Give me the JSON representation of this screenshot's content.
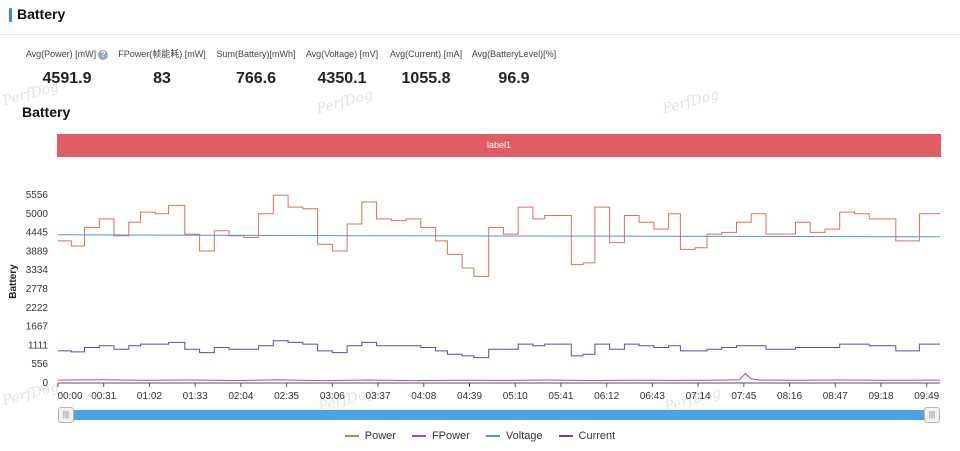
{
  "header": {
    "title": "Battery"
  },
  "stats": [
    {
      "label": "Avg(Power) [mW]",
      "value": "4591.9",
      "help": "?"
    },
    {
      "label": "FPower(帧能耗) [mW]",
      "value": "83"
    },
    {
      "label": "Sum(Battery)[mWh]",
      "value": "766.6"
    },
    {
      "label": "Avg(Voltage) [mV]",
      "value": "4350.1"
    },
    {
      "label": "Avg(Current) [mA]",
      "value": "1055.8"
    },
    {
      "label": "Avg(BatteryLevel)[%]",
      "value": "96.9"
    }
  ],
  "watermark": "PerfDog",
  "chart_title": "Battery",
  "label_band": "label1",
  "chart_data": {
    "type": "line",
    "ylabel": "Battery",
    "yticks": [
      0,
      556,
      1111,
      1667,
      2222,
      2778,
      3334,
      3889,
      4445,
      5000,
      5556
    ],
    "ylim": [
      0,
      6000
    ],
    "xlim": [
      0,
      598
    ],
    "xtick_labels": [
      "00:00",
      "00:31",
      "01:02",
      "01:33",
      "02:04",
      "02:35",
      "03:06",
      "03:37",
      "04:08",
      "04:39",
      "05:10",
      "05:41",
      "06:12",
      "06:43",
      "07:14",
      "07:45",
      "08:16",
      "08:47",
      "09:18",
      "09:49"
    ],
    "xtick_seconds": [
      0,
      31,
      62,
      93,
      124,
      155,
      186,
      217,
      248,
      279,
      310,
      341,
      372,
      403,
      434,
      465,
      496,
      527,
      558,
      589
    ],
    "series": [
      {
        "name": "Power",
        "color": "#e0714f",
        "points": [
          [
            0,
            4200
          ],
          [
            9,
            4050
          ],
          [
            18,
            4600
          ],
          [
            28,
            4850
          ],
          [
            38,
            4350
          ],
          [
            48,
            4750
          ],
          [
            56,
            5050
          ],
          [
            66,
            5000
          ],
          [
            75,
            5250
          ],
          [
            86,
            4400
          ],
          [
            96,
            3900
          ],
          [
            106,
            4500
          ],
          [
            116,
            4350
          ],
          [
            126,
            4300
          ],
          [
            136,
            5000
          ],
          [
            146,
            5550
          ],
          [
            156,
            5200
          ],
          [
            166,
            5150
          ],
          [
            176,
            4100
          ],
          [
            186,
            3900
          ],
          [
            196,
            4700
          ],
          [
            206,
            5350
          ],
          [
            216,
            4850
          ],
          [
            226,
            4800
          ],
          [
            236,
            4850
          ],
          [
            246,
            4600
          ],
          [
            256,
            4200
          ],
          [
            264,
            3800
          ],
          [
            274,
            3400
          ],
          [
            282,
            3150
          ],
          [
            292,
            4600
          ],
          [
            302,
            4400
          ],
          [
            312,
            5200
          ],
          [
            322,
            4850
          ],
          [
            330,
            4950
          ],
          [
            340,
            4950
          ],
          [
            348,
            3500
          ],
          [
            356,
            3550
          ],
          [
            364,
            5200
          ],
          [
            374,
            4150
          ],
          [
            384,
            4950
          ],
          [
            394,
            4750
          ],
          [
            404,
            4550
          ],
          [
            414,
            5000
          ],
          [
            422,
            3950
          ],
          [
            432,
            4000
          ],
          [
            440,
            4400
          ],
          [
            450,
            4450
          ],
          [
            460,
            4750
          ],
          [
            470,
            5000
          ],
          [
            480,
            4400
          ],
          [
            490,
            4400
          ],
          [
            500,
            4750
          ],
          [
            510,
            4450
          ],
          [
            520,
            4550
          ],
          [
            530,
            5050
          ],
          [
            540,
            5000
          ],
          [
            550,
            4850
          ],
          [
            560,
            4850
          ],
          [
            568,
            4200
          ],
          [
            576,
            4200
          ],
          [
            584,
            5000
          ],
          [
            598,
            5000
          ]
        ]
      },
      {
        "name": "FPower",
        "color": "#b43ec0",
        "points": [
          [
            0,
            85
          ],
          [
            30,
            95
          ],
          [
            60,
            80
          ],
          [
            90,
            90
          ],
          [
            120,
            75
          ],
          [
            150,
            92
          ],
          [
            180,
            70
          ],
          [
            210,
            88
          ],
          [
            240,
            70
          ],
          [
            270,
            80
          ],
          [
            300,
            78
          ],
          [
            330,
            90
          ],
          [
            360,
            75
          ],
          [
            390,
            82
          ],
          [
            420,
            78
          ],
          [
            450,
            85
          ],
          [
            462,
            95
          ],
          [
            466,
            280
          ],
          [
            470,
            120
          ],
          [
            475,
            90
          ],
          [
            500,
            80
          ],
          [
            530,
            90
          ],
          [
            560,
            80
          ],
          [
            598,
            85
          ]
        ]
      },
      {
        "name": "Voltage",
        "color": "#4b93e6",
        "points": [
          [
            0,
            4380
          ],
          [
            100,
            4365
          ],
          [
            200,
            4355
          ],
          [
            300,
            4345
          ],
          [
            400,
            4340
          ],
          [
            500,
            4330
          ],
          [
            598,
            4320
          ]
        ]
      },
      {
        "name": "Current",
        "color": "#6a3ec8",
        "points": [
          [
            0,
            950
          ],
          [
            9,
            920
          ],
          [
            18,
            1050
          ],
          [
            28,
            1100
          ],
          [
            38,
            1000
          ],
          [
            48,
            1100
          ],
          [
            56,
            1150
          ],
          [
            66,
            1150
          ],
          [
            75,
            1200
          ],
          [
            86,
            1000
          ],
          [
            96,
            900
          ],
          [
            106,
            1050
          ],
          [
            116,
            1000
          ],
          [
            126,
            1000
          ],
          [
            136,
            1100
          ],
          [
            146,
            1250
          ],
          [
            156,
            1200
          ],
          [
            166,
            1150
          ],
          [
            176,
            950
          ],
          [
            186,
            900
          ],
          [
            196,
            1100
          ],
          [
            206,
            1200
          ],
          [
            216,
            1100
          ],
          [
            226,
            1100
          ],
          [
            236,
            1100
          ],
          [
            246,
            1050
          ],
          [
            256,
            950
          ],
          [
            264,
            850
          ],
          [
            274,
            800
          ],
          [
            282,
            750
          ],
          [
            292,
            1000
          ],
          [
            302,
            1000
          ],
          [
            312,
            1150
          ],
          [
            322,
            1100
          ],
          [
            330,
            1150
          ],
          [
            340,
            1150
          ],
          [
            348,
            800
          ],
          [
            356,
            850
          ],
          [
            364,
            1150
          ],
          [
            374,
            1000
          ],
          [
            384,
            1150
          ],
          [
            394,
            1100
          ],
          [
            404,
            1050
          ],
          [
            414,
            1100
          ],
          [
            422,
            950
          ],
          [
            432,
            950
          ],
          [
            440,
            1000
          ],
          [
            450,
            1050
          ],
          [
            460,
            1100
          ],
          [
            470,
            1100
          ],
          [
            480,
            1000
          ],
          [
            490,
            1000
          ],
          [
            500,
            1050
          ],
          [
            510,
            1050
          ],
          [
            520,
            1050
          ],
          [
            530,
            1150
          ],
          [
            540,
            1150
          ],
          [
            550,
            1100
          ],
          [
            560,
            1100
          ],
          [
            568,
            950
          ],
          [
            576,
            950
          ],
          [
            584,
            1150
          ],
          [
            598,
            1150
          ]
        ]
      }
    ],
    "legend_position": "bottom-center"
  },
  "slider": {
    "left_handle": "|||",
    "right_handle": "|||"
  }
}
